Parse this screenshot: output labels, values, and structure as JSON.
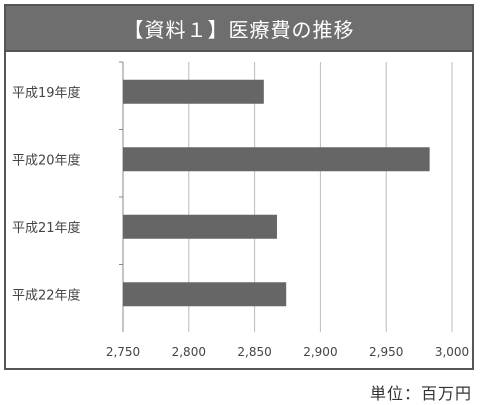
{
  "title": "【資料１】医療費の推移",
  "unit_note": "単位：百万円",
  "colors": {
    "bar": "#666666",
    "title_bg": "#6e6e6e",
    "grid": "#bbbbbb"
  },
  "chart_data": {
    "type": "bar",
    "orientation": "horizontal",
    "categories": [
      "平成19年度",
      "平成20年度",
      "平成21年度",
      "平成22年度"
    ],
    "values": [
      2857,
      2983,
      2867,
      2874
    ],
    "xlim": [
      2750,
      3000
    ],
    "ticks": [
      "2,750",
      "2,800",
      "2,850",
      "2,900",
      "2,950",
      "3,000"
    ],
    "tick_values": [
      2750,
      2800,
      2850,
      2900,
      2950,
      3000
    ],
    "grid": true
  }
}
